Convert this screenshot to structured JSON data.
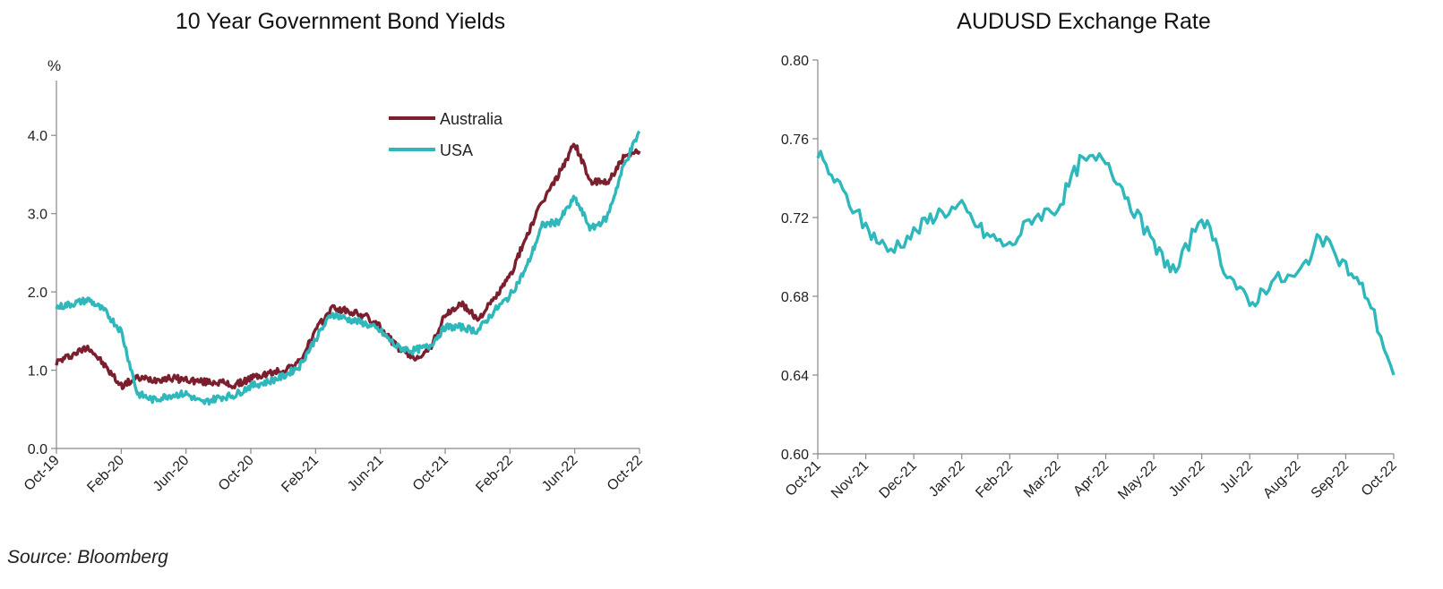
{
  "source": "Source: Bloomberg",
  "chart_data": [
    {
      "type": "line",
      "title": "10 Year Government Bond Yields",
      "ylabel": "%",
      "ylim": [
        0,
        4.7
      ],
      "yticks": [
        "0.0",
        "1.0",
        "2.0",
        "3.0",
        "4.0"
      ],
      "ytick_values": [
        0,
        1,
        2,
        3,
        4
      ],
      "xlim": [
        "2019-10",
        "2022-10"
      ],
      "xticks": [
        "Oct-19",
        "Feb-20",
        "Jun-20",
        "Oct-20",
        "Feb-21",
        "Jun-21",
        "Oct-21",
        "Feb-22",
        "Jun-22",
        "Oct-22"
      ],
      "legend": "top-right",
      "series": [
        {
          "name": "Australia",
          "color": "#7b1f2e",
          "x": [
            "2019-10",
            "2019-11",
            "2019-12",
            "2020-01",
            "2020-02",
            "2020-03",
            "2020-04",
            "2020-05",
            "2020-06",
            "2020-07",
            "2020-08",
            "2020-09",
            "2020-10",
            "2020-11",
            "2020-12",
            "2021-01",
            "2021-02",
            "2021-03",
            "2021-04",
            "2021-05",
            "2021-06",
            "2021-07",
            "2021-08",
            "2021-09",
            "2021-10",
            "2021-11",
            "2021-12",
            "2022-01",
            "2022-02",
            "2022-03",
            "2022-04",
            "2022-05",
            "2022-06",
            "2022-07",
            "2022-08",
            "2022-09",
            "2022-10"
          ],
          "y": [
            1.1,
            1.2,
            1.3,
            1.05,
            0.8,
            0.9,
            0.88,
            0.9,
            0.88,
            0.85,
            0.85,
            0.8,
            0.9,
            0.95,
            1.0,
            1.1,
            1.5,
            1.8,
            1.75,
            1.7,
            1.55,
            1.3,
            1.15,
            1.25,
            1.7,
            1.85,
            1.65,
            1.9,
            2.2,
            2.7,
            3.15,
            3.5,
            3.9,
            3.4,
            3.4,
            3.7,
            3.8
          ]
        },
        {
          "name": "USA",
          "color": "#2fb8bc",
          "x": [
            "2019-10",
            "2019-11",
            "2019-12",
            "2020-01",
            "2020-02",
            "2020-03",
            "2020-04",
            "2020-05",
            "2020-06",
            "2020-07",
            "2020-08",
            "2020-09",
            "2020-10",
            "2020-11",
            "2020-12",
            "2021-01",
            "2021-02",
            "2021-03",
            "2021-04",
            "2021-05",
            "2021-06",
            "2021-07",
            "2021-08",
            "2021-09",
            "2021-10",
            "2021-11",
            "2021-12",
            "2022-01",
            "2022-02",
            "2022-03",
            "2022-04",
            "2022-05",
            "2022-06",
            "2022-07",
            "2022-08",
            "2022-09",
            "2022-10"
          ],
          "y": [
            1.8,
            1.85,
            1.9,
            1.75,
            1.5,
            0.7,
            0.62,
            0.68,
            0.7,
            0.58,
            0.65,
            0.68,
            0.8,
            0.85,
            0.92,
            1.05,
            1.4,
            1.72,
            1.65,
            1.6,
            1.5,
            1.3,
            1.25,
            1.3,
            1.55,
            1.55,
            1.5,
            1.75,
            1.95,
            2.3,
            2.85,
            2.9,
            3.2,
            2.8,
            2.95,
            3.6,
            4.05
          ]
        }
      ]
    },
    {
      "type": "line",
      "title": "AUDUSD Exchange Rate",
      "ylim": [
        0.6,
        0.8
      ],
      "yticks": [
        "0.60",
        "0.64",
        "0.68",
        "0.72",
        "0.76",
        "0.80"
      ],
      "ytick_values": [
        0.6,
        0.64,
        0.68,
        0.72,
        0.76,
        0.8
      ],
      "xlim": [
        "2021-10",
        "2022-10"
      ],
      "xticks": [
        "Oct-21",
        "Nov-21",
        "Dec-21",
        "Jan-22",
        "Feb-22",
        "Mar-22",
        "Apr-22",
        "May-22",
        "Jun-22",
        "Jul-22",
        "Aug-22",
        "Sep-22",
        "Oct-22"
      ],
      "series": [
        {
          "color": "#2fb8bc",
          "x": [
            "2021-10-01",
            "2021-10-15",
            "2021-11-01",
            "2021-11-15",
            "2021-12-01",
            "2021-12-15",
            "2022-01-01",
            "2022-01-15",
            "2022-02-01",
            "2022-02-15",
            "2022-03-01",
            "2022-03-15",
            "2022-04-01",
            "2022-04-15",
            "2022-05-01",
            "2022-05-15",
            "2022-06-01",
            "2022-06-15",
            "2022-07-01",
            "2022-07-15",
            "2022-08-01",
            "2022-08-15",
            "2022-09-01",
            "2022-09-15",
            "2022-10-01"
          ],
          "y": [
            0.752,
            0.735,
            0.715,
            0.703,
            0.712,
            0.722,
            0.725,
            0.712,
            0.705,
            0.72,
            0.725,
            0.748,
            0.75,
            0.73,
            0.705,
            0.692,
            0.722,
            0.695,
            0.675,
            0.688,
            0.69,
            0.71,
            0.695,
            0.68,
            0.64
          ]
        }
      ]
    }
  ]
}
